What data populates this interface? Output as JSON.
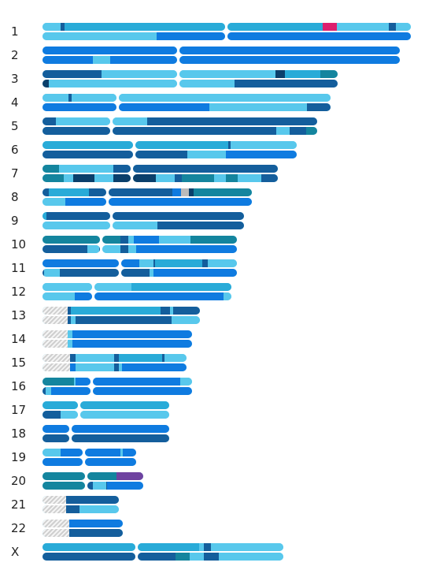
{
  "colors": {
    "c1": "#58c8ec",
    "c2": "#29abd8",
    "c3": "#0f7be0",
    "c4": "#145e9c",
    "c5": "#0a3f6b",
    "c6": "#14859e",
    "c7": "#dd1f6e",
    "c8": "#6f43a0",
    "c9": "#bbbbbb",
    "gap": "hatched"
  },
  "chromosomes": [
    {
      "label": "1",
      "length": 0.985,
      "centromere": 0.5,
      "homologs": [
        [
          [
            0,
            0.05,
            "c1"
          ],
          [
            0.05,
            0.06,
            "c4"
          ],
          [
            0.06,
            0.5,
            "c2"
          ],
          [
            0.5,
            0.76,
            "c2"
          ],
          [
            0.76,
            0.8,
            "c7"
          ],
          [
            0.8,
            0.94,
            "c1"
          ],
          [
            0.94,
            0.96,
            "c4"
          ],
          [
            0.96,
            1,
            "c1"
          ]
        ],
        [
          [
            0,
            0.31,
            "c1"
          ],
          [
            0.31,
            0.5,
            "c3"
          ],
          [
            0.5,
            1,
            "c3"
          ]
        ]
      ]
    },
    {
      "label": "2",
      "length": 0.955,
      "centromere": 0.38,
      "homologs": [
        [
          [
            0,
            1,
            "c3"
          ]
        ],
        [
          [
            0,
            0.14,
            "c3"
          ],
          [
            0.14,
            0.19,
            "c1"
          ],
          [
            0.19,
            1,
            "c3"
          ]
        ]
      ]
    },
    {
      "label": "3",
      "length": 0.79,
      "centromere": 0.46,
      "homologs": [
        [
          [
            0,
            0.2,
            "c4"
          ],
          [
            0.2,
            0.46,
            "c1"
          ],
          [
            0.46,
            0.79,
            "c1"
          ],
          [
            0.79,
            0.82,
            "c5"
          ],
          [
            0.82,
            0.94,
            "c2"
          ],
          [
            0.94,
            0.96,
            "c6"
          ],
          [
            0.96,
            1,
            "c6"
          ]
        ],
        [
          [
            0,
            0.02,
            "c5"
          ],
          [
            0.02,
            0.46,
            "c1"
          ],
          [
            0.46,
            0.65,
            "c1"
          ],
          [
            0.65,
            1,
            "c4"
          ]
        ]
      ]
    },
    {
      "label": "4",
      "length": 0.77,
      "centromere": 0.26,
      "homologs": [
        [
          [
            0,
            0.09,
            "c1"
          ],
          [
            0.09,
            0.1,
            "c4"
          ],
          [
            0.1,
            0.26,
            "c1"
          ],
          [
            0.26,
            1,
            "c1"
          ]
        ],
        [
          [
            0,
            0.26,
            "c3"
          ],
          [
            0.26,
            0.58,
            "c3"
          ],
          [
            0.58,
            0.92,
            "c1"
          ],
          [
            0.92,
            1,
            "c4"
          ]
        ]
      ]
    },
    {
      "label": "5",
      "length": 0.735,
      "centromere": 0.25,
      "homologs": [
        [
          [
            0,
            0.05,
            "c4"
          ],
          [
            0.05,
            0.25,
            "c1"
          ],
          [
            0.25,
            0.38,
            "c1"
          ],
          [
            0.38,
            1,
            "c4"
          ]
        ],
        [
          [
            0,
            0.25,
            "c4"
          ],
          [
            0.25,
            0.85,
            "c4"
          ],
          [
            0.85,
            0.9,
            "c1"
          ],
          [
            0.9,
            0.96,
            "c4"
          ],
          [
            0.96,
            1,
            "c6"
          ]
        ]
      ]
    },
    {
      "label": "6",
      "length": 0.68,
      "centromere": 0.36,
      "homologs": [
        [
          [
            0,
            0.36,
            "c2"
          ],
          [
            0.36,
            0.73,
            "c2"
          ],
          [
            0.73,
            0.74,
            "c4"
          ],
          [
            0.74,
            1,
            "c1"
          ]
        ],
        [
          [
            0,
            0.36,
            "c4"
          ],
          [
            0.36,
            0.57,
            "c4"
          ],
          [
            0.57,
            0.72,
            "c1"
          ],
          [
            0.72,
            1,
            "c3"
          ]
        ]
      ]
    },
    {
      "label": "7",
      "length": 0.63,
      "centromere": 0.38,
      "homologs": [
        [
          [
            0,
            0.07,
            "c6"
          ],
          [
            0.07,
            0.3,
            "c1"
          ],
          [
            0.3,
            0.38,
            "c4"
          ],
          [
            0.38,
            1,
            "c4"
          ]
        ],
        [
          [
            0,
            0.09,
            "c6"
          ],
          [
            0.09,
            0.13,
            "c1"
          ],
          [
            0.13,
            0.22,
            "c5"
          ],
          [
            0.22,
            0.3,
            "c1"
          ],
          [
            0.3,
            0.38,
            "c5"
          ],
          [
            0.38,
            0.48,
            "c5"
          ],
          [
            0.48,
            0.56,
            "c1"
          ],
          [
            0.56,
            0.59,
            "c4"
          ],
          [
            0.59,
            0.73,
            "c6"
          ],
          [
            0.73,
            0.78,
            "c1"
          ],
          [
            0.78,
            0.83,
            "c6"
          ],
          [
            0.83,
            0.93,
            "c1"
          ],
          [
            0.93,
            1,
            "c4"
          ]
        ]
      ]
    },
    {
      "label": "8",
      "length": 0.56,
      "centromere": 0.31,
      "homologs": [
        [
          [
            0,
            0.03,
            "c4"
          ],
          [
            0.03,
            0.22,
            "c2"
          ],
          [
            0.22,
            0.31,
            "c4"
          ],
          [
            0.31,
            0.5,
            "c4"
          ],
          [
            0.5,
            0.62,
            "c4"
          ],
          [
            0.62,
            0.66,
            "c3"
          ],
          [
            0.66,
            0.7,
            "c9"
          ],
          [
            0.7,
            0.72,
            "c5"
          ],
          [
            0.72,
            1,
            "c6"
          ]
        ],
        [
          [
            0,
            0.11,
            "c1"
          ],
          [
            0.11,
            0.31,
            "c3"
          ],
          [
            0.31,
            1,
            "c3"
          ]
        ]
      ]
    },
    {
      "label": "9",
      "length": 0.54,
      "centromere": 0.34,
      "homologs": [
        [
          [
            0,
            0.02,
            "c2"
          ],
          [
            0.02,
            0.34,
            "c4"
          ],
          [
            0.34,
            1,
            "c4"
          ]
        ],
        [
          [
            0,
            0.34,
            "c1"
          ],
          [
            0.34,
            0.57,
            "c1"
          ],
          [
            0.57,
            1,
            "c4"
          ]
        ]
      ]
    },
    {
      "label": "10",
      "length": 0.52,
      "centromere": 0.3,
      "homologs": [
        [
          [
            0,
            0.3,
            "c6"
          ],
          [
            0.3,
            0.4,
            "c6"
          ],
          [
            0.4,
            0.44,
            "c4"
          ],
          [
            0.44,
            0.47,
            "c1"
          ],
          [
            0.47,
            0.6,
            "c3"
          ],
          [
            0.6,
            0.76,
            "c1"
          ],
          [
            0.76,
            1,
            "c6"
          ]
        ],
        [
          [
            0,
            0.23,
            "c4"
          ],
          [
            0.23,
            0.29,
            "c1"
          ],
          [
            0.29,
            0.3,
            "c4"
          ],
          [
            0.3,
            0.4,
            "c1"
          ],
          [
            0.4,
            0.44,
            "c4"
          ],
          [
            0.44,
            0.48,
            "c1"
          ],
          [
            0.48,
            1,
            "c3"
          ]
        ]
      ]
    },
    {
      "label": "11",
      "length": 0.52,
      "centromere": 0.4,
      "homologs": [
        [
          [
            0,
            0.4,
            "c3"
          ],
          [
            0.4,
            0.5,
            "c3"
          ],
          [
            0.5,
            0.57,
            "c1"
          ],
          [
            0.57,
            0.58,
            "c4"
          ],
          [
            0.58,
            0.82,
            "c2"
          ],
          [
            0.82,
            0.85,
            "c4"
          ],
          [
            0.85,
            1,
            "c1"
          ]
        ],
        [
          [
            0,
            0.01,
            "c4"
          ],
          [
            0.01,
            0.09,
            "c1"
          ],
          [
            0.09,
            0.4,
            "c4"
          ],
          [
            0.4,
            0.55,
            "c4"
          ],
          [
            0.55,
            0.57,
            "c1"
          ],
          [
            0.57,
            1,
            "c3"
          ]
        ]
      ]
    },
    {
      "label": "12",
      "length": 0.505,
      "centromere": 0.27,
      "homologs": [
        [
          [
            0,
            0.27,
            "c1"
          ],
          [
            0.27,
            0.47,
            "c1"
          ],
          [
            0.47,
            1,
            "c2"
          ]
        ],
        [
          [
            0,
            0.17,
            "c1"
          ],
          [
            0.17,
            0.27,
            "c3"
          ],
          [
            0.27,
            0.96,
            "c3"
          ],
          [
            0.96,
            1,
            "c1"
          ]
        ]
      ]
    },
    {
      "label": "13",
      "length": 0.42,
      "centromere": 0.0,
      "homologs": [
        [
          [
            0,
            0.16,
            "gap"
          ],
          [
            0.16,
            0.18,
            "c4"
          ],
          [
            0.18,
            0.75,
            "c2"
          ],
          [
            0.75,
            0.81,
            "c4"
          ],
          [
            0.81,
            0.83,
            "c1"
          ],
          [
            0.83,
            0.85,
            "c4"
          ],
          [
            0.85,
            1,
            "c4"
          ]
        ],
        [
          [
            0,
            0.16,
            "gap"
          ],
          [
            0.16,
            0.18,
            "c4"
          ],
          [
            0.18,
            0.21,
            "c1"
          ],
          [
            0.21,
            0.82,
            "c4"
          ],
          [
            0.82,
            1,
            "c1"
          ]
        ]
      ]
    },
    {
      "label": "14",
      "length": 0.4,
      "centromere": 0.0,
      "homologs": [
        [
          [
            0,
            0.17,
            "gap"
          ],
          [
            0.17,
            0.2,
            "c1"
          ],
          [
            0.2,
            1,
            "c3"
          ]
        ],
        [
          [
            0,
            0.17,
            "gap"
          ],
          [
            0.17,
            0.2,
            "c1"
          ],
          [
            0.2,
            1,
            "c3"
          ]
        ]
      ]
    },
    {
      "label": "15",
      "length": 0.385,
      "centromere": 0.0,
      "homologs": [
        [
          [
            0,
            0.19,
            "gap"
          ],
          [
            0.19,
            0.23,
            "c4"
          ],
          [
            0.23,
            0.26,
            "c1"
          ],
          [
            0.26,
            0.5,
            "c1"
          ],
          [
            0.5,
            0.53,
            "c4"
          ],
          [
            0.53,
            0.83,
            "c2"
          ],
          [
            0.83,
            0.85,
            "c4"
          ],
          [
            0.85,
            1,
            "c1"
          ]
        ],
        [
          [
            0,
            0.19,
            "gap"
          ],
          [
            0.19,
            0.23,
            "c3"
          ],
          [
            0.23,
            0.5,
            "c1"
          ],
          [
            0.5,
            0.53,
            "c4"
          ],
          [
            0.53,
            0.55,
            "c1"
          ],
          [
            0.55,
            1,
            "c3"
          ]
        ]
      ]
    },
    {
      "label": "16",
      "length": 0.4,
      "centromere": 0.33,
      "homologs": [
        [
          [
            0,
            0.21,
            "c6"
          ],
          [
            0.21,
            0.22,
            "c1"
          ],
          [
            0.22,
            0.23,
            "c3"
          ],
          [
            0.23,
            0.33,
            "c3"
          ],
          [
            0.33,
            0.92,
            "c3"
          ],
          [
            0.92,
            1,
            "c1"
          ]
        ],
        [
          [
            0,
            0.02,
            "c4"
          ],
          [
            0.02,
            0.06,
            "c1"
          ],
          [
            0.06,
            0.33,
            "c3"
          ],
          [
            0.33,
            1,
            "c3"
          ]
        ]
      ]
    },
    {
      "label": "17",
      "length": 0.34,
      "centromere": 0.29,
      "homologs": [
        [
          [
            0,
            1,
            "c2"
          ]
        ],
        [
          [
            0,
            0.14,
            "c4"
          ],
          [
            0.14,
            0.29,
            "c1"
          ],
          [
            0.29,
            1,
            "c1"
          ]
        ]
      ]
    },
    {
      "label": "18",
      "length": 0.34,
      "centromere": 0.22,
      "homologs": [
        [
          [
            0,
            0.22,
            "c3"
          ],
          [
            0.22,
            1,
            "c3"
          ]
        ],
        [
          [
            0,
            0.22,
            "c4"
          ],
          [
            0.22,
            1,
            "c4"
          ]
        ]
      ]
    },
    {
      "label": "19",
      "length": 0.25,
      "centromere": 0.44,
      "homologs": [
        [
          [
            0,
            0.19,
            "c1"
          ],
          [
            0.19,
            0.44,
            "c3"
          ],
          [
            0.44,
            0.83,
            "c3"
          ],
          [
            0.83,
            0.86,
            "c1"
          ],
          [
            0.86,
            1,
            "c3"
          ]
        ],
        [
          [
            0,
            0.44,
            "c3"
          ],
          [
            0.44,
            1,
            "c3"
          ]
        ]
      ]
    },
    {
      "label": "20",
      "length": 0.27,
      "centromere": 0.43,
      "homologs": [
        [
          [
            0,
            0.43,
            "c6"
          ],
          [
            0.43,
            0.73,
            "c6"
          ],
          [
            0.73,
            0.97,
            "c8"
          ],
          [
            0.97,
            1,
            "c8"
          ]
        ],
        [
          [
            0,
            0.43,
            "c6"
          ],
          [
            0.43,
            0.5,
            "c4"
          ],
          [
            0.5,
            0.63,
            "c1"
          ],
          [
            0.63,
            0.64,
            "c4"
          ],
          [
            0.64,
            1,
            "c3"
          ]
        ]
      ]
    },
    {
      "label": "21",
      "length": 0.205,
      "centromere": 0.0,
      "homologs": [
        [
          [
            0,
            0.31,
            "gap"
          ],
          [
            0.31,
            1,
            "c4"
          ]
        ],
        [
          [
            0,
            0.31,
            "gap"
          ],
          [
            0.31,
            0.48,
            "c4"
          ],
          [
            0.48,
            1,
            "c1"
          ]
        ]
      ]
    },
    {
      "label": "22",
      "length": 0.215,
      "centromere": 0.0,
      "homologs": [
        [
          [
            0,
            0.33,
            "gap"
          ],
          [
            0.33,
            1,
            "c3"
          ]
        ],
        [
          [
            0,
            0.33,
            "gap"
          ],
          [
            0.33,
            1,
            "c4"
          ]
        ]
      ]
    },
    {
      "label": "X",
      "length": 0.645,
      "centromere": 0.39,
      "homologs": [
        [
          [
            0,
            0.39,
            "c2"
          ],
          [
            0.39,
            0.65,
            "c2"
          ],
          [
            0.65,
            0.67,
            "c1"
          ],
          [
            0.67,
            0.7,
            "c4"
          ],
          [
            0.7,
            1,
            "c1"
          ]
        ],
        [
          [
            0,
            0.39,
            "c4"
          ],
          [
            0.39,
            0.55,
            "c4"
          ],
          [
            0.55,
            0.61,
            "c6"
          ],
          [
            0.61,
            0.67,
            "c1"
          ],
          [
            0.67,
            0.73,
            "c4"
          ],
          [
            0.73,
            1,
            "c1"
          ]
        ]
      ]
    }
  ]
}
